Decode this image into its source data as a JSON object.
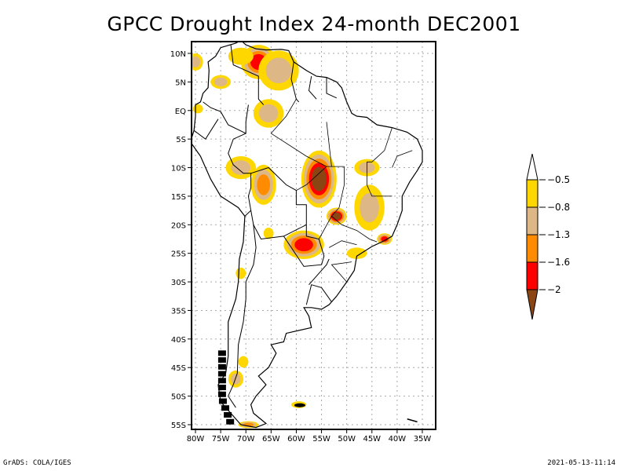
{
  "title": "GPCC Drought Index 24-month DEC2001",
  "footer": {
    "left": "GrADS: COLA/IGES",
    "right": "2021-05-13-11:14"
  },
  "map": {
    "region": "South America",
    "lon_range": [
      -81,
      -33
    ],
    "lat_range": [
      12,
      -56
    ],
    "lat_ticks": [
      {
        "value": 10,
        "label": "10N"
      },
      {
        "value": 5,
        "label": "5N"
      },
      {
        "value": 0,
        "label": "EQ"
      },
      {
        "value": -5,
        "label": "5S"
      },
      {
        "value": -10,
        "label": "10S"
      },
      {
        "value": -15,
        "label": "15S"
      },
      {
        "value": -20,
        "label": "20S"
      },
      {
        "value": -25,
        "label": "25S"
      },
      {
        "value": -30,
        "label": "30S"
      },
      {
        "value": -35,
        "label": "35S"
      },
      {
        "value": -40,
        "label": "40S"
      },
      {
        "value": -45,
        "label": "45S"
      },
      {
        "value": -50,
        "label": "50S"
      },
      {
        "value": -55,
        "label": "55S"
      }
    ],
    "lon_ticks": [
      {
        "value": -80,
        "label": "80W"
      },
      {
        "value": -75,
        "label": "75W"
      },
      {
        "value": -70,
        "label": "70W"
      },
      {
        "value": -65,
        "label": "65W"
      },
      {
        "value": -60,
        "label": "60W"
      },
      {
        "value": -55,
        "label": "55W"
      },
      {
        "value": -50,
        "label": "50W"
      },
      {
        "value": -45,
        "label": "45W"
      },
      {
        "value": -40,
        "label": "40W"
      },
      {
        "value": -35,
        "label": "35W"
      }
    ],
    "drought_areas": [
      {
        "name": "northern-venezuela",
        "lon": -67.5,
        "lat": 8.5,
        "rx": 3.5,
        "ry": 3,
        "level": 4
      },
      {
        "name": "venezuela-guyana",
        "lon": -63.5,
        "lat": 7,
        "rx": 4,
        "ry": 3.5,
        "level": 2
      },
      {
        "name": "colombia-north",
        "lon": -71,
        "lat": 9.5,
        "rx": 2.5,
        "ry": 1.5,
        "level": 1
      },
      {
        "name": "colombia-coast",
        "lon": -80,
        "lat": 8.5,
        "rx": 1.5,
        "ry": 1.5,
        "level": 2
      },
      {
        "name": "colombia-central",
        "lon": -75,
        "lat": 5,
        "rx": 2,
        "ry": 1.2,
        "level": 2
      },
      {
        "name": "amazon-north",
        "lon": -65.5,
        "lat": -0.5,
        "rx": 3,
        "ry": 2.5,
        "level": 2
      },
      {
        "name": "ecuador",
        "lon": -79.5,
        "lat": 0.3,
        "rx": 1,
        "ry": 0.8,
        "level": 1
      },
      {
        "name": "peru-brazil-border",
        "lon": -71,
        "lat": -10,
        "rx": 3,
        "ry": 2,
        "level": 2
      },
      {
        "name": "bolivia-north",
        "lon": -66.5,
        "lat": -13,
        "rx": 2.5,
        "ry": 3.5,
        "level": 3
      },
      {
        "name": "mato-grosso",
        "lon": -55.5,
        "lat": -12,
        "rx": 3.5,
        "ry": 5,
        "level": 5
      },
      {
        "name": "goias-south",
        "lon": -52,
        "lat": -18.5,
        "rx": 2,
        "ry": 1.5,
        "level": 5
      },
      {
        "name": "minas-gerais",
        "lon": -45.5,
        "lat": -17,
        "rx": 3,
        "ry": 4,
        "level": 2
      },
      {
        "name": "bahia",
        "lon": -46,
        "lat": -10,
        "rx": 2.5,
        "ry": 1.5,
        "level": 2
      },
      {
        "name": "rio-de-janeiro",
        "lon": -42.5,
        "lat": -22.5,
        "rx": 1.5,
        "ry": 1,
        "level": 4
      },
      {
        "name": "paraguay",
        "lon": -58.5,
        "lat": -23.5,
        "rx": 4,
        "ry": 2.5,
        "level": 4
      },
      {
        "name": "parana",
        "lon": -48,
        "lat": -25,
        "rx": 2,
        "ry": 1,
        "level": 1
      },
      {
        "name": "chile-north",
        "lon": -71,
        "lat": -28.5,
        "rx": 1,
        "ry": 1,
        "level": 1
      },
      {
        "name": "argentina-central",
        "lon": -65.5,
        "lat": -21.5,
        "rx": 1,
        "ry": 1,
        "level": 1
      },
      {
        "name": "patagonia-lake",
        "lon": -70.5,
        "lat": -44,
        "rx": 1,
        "ry": 1,
        "level": 1
      },
      {
        "name": "patagonia-south",
        "lon": -72,
        "lat": -47,
        "rx": 1.5,
        "ry": 1.5,
        "level": 2
      },
      {
        "name": "falklands",
        "lon": -59.5,
        "lat": -51.5,
        "rx": 1.5,
        "ry": 0.6,
        "level": 1
      },
      {
        "name": "tierra-del-fuego",
        "lon": -69.5,
        "lat": -55,
        "rx": 2,
        "ry": 0.6,
        "level": 3
      }
    ]
  },
  "legend": {
    "levels": [
      {
        "label": "-0.5",
        "color": "#ffd700"
      },
      {
        "label": "-0.8",
        "color": "#ddb886"
      },
      {
        "label": "-1.3",
        "color": "#ff8c00"
      },
      {
        "label": "-1.6",
        "color": "#ff0000"
      },
      {
        "label": "-2",
        "color": "#8b4513"
      }
    ],
    "top_arrow_color": "#ffffff",
    "bottom_arrow_color": "#8b4513",
    "fill_colors": [
      "#ffd700",
      "#ddb886",
      "#ff8c00",
      "#ff0000",
      "#8b4513"
    ]
  }
}
